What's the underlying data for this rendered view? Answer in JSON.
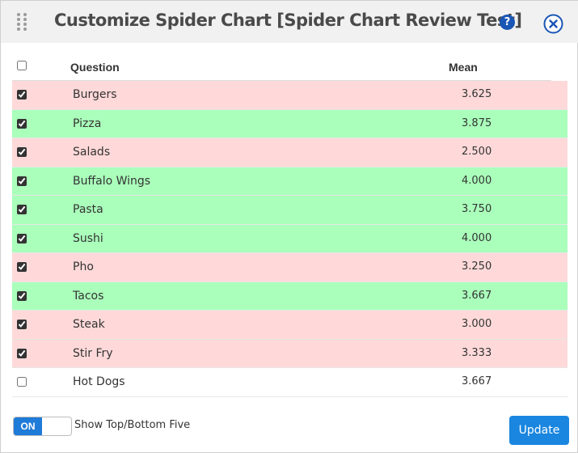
{
  "dialog": {
    "title": "Customize Spider Chart [Spider Chart Review Test]",
    "help_glyph": "?",
    "colors": {
      "accent": "#1f7bd8",
      "row_pink": "#ffd9d9",
      "row_green": "#aaffbb"
    }
  },
  "table": {
    "header": {
      "question": "Question",
      "mean": "Mean",
      "select_all_checked": false
    },
    "rows": [
      {
        "question": "Burgers",
        "mean": "3.625",
        "checked": true,
        "color": "pink"
      },
      {
        "question": "Pizza",
        "mean": "3.875",
        "checked": true,
        "color": "green"
      },
      {
        "question": "Salads",
        "mean": "2.500",
        "checked": true,
        "color": "pink"
      },
      {
        "question": "Buffalo Wings",
        "mean": "4.000",
        "checked": true,
        "color": "green"
      },
      {
        "question": "Pasta",
        "mean": "3.750",
        "checked": true,
        "color": "green"
      },
      {
        "question": "Sushi",
        "mean": "4.000",
        "checked": true,
        "color": "green"
      },
      {
        "question": "Pho",
        "mean": "3.250",
        "checked": true,
        "color": "pink"
      },
      {
        "question": "Tacos",
        "mean": "3.667",
        "checked": true,
        "color": "green"
      },
      {
        "question": "Steak",
        "mean": "3.000",
        "checked": true,
        "color": "pink"
      },
      {
        "question": "Stir Fry",
        "mean": "3.333",
        "checked": true,
        "color": "pink"
      },
      {
        "question": "Hot Dogs",
        "mean": "3.667",
        "checked": false,
        "color": "white"
      }
    ]
  },
  "footer": {
    "toggle_state": "ON",
    "toggle_label": "Show Top/Bottom Five",
    "update_label": "Update"
  }
}
